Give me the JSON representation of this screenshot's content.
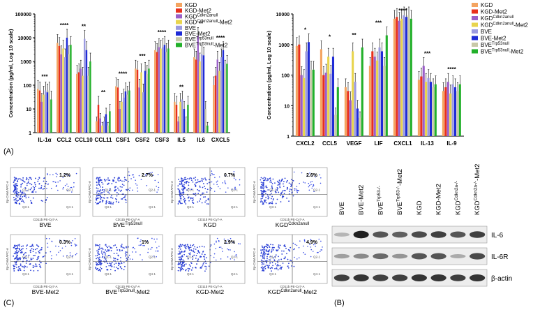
{
  "palette": [
    "#f4a460",
    "#e8301c",
    "#9a5fc8",
    "#e8d44d",
    "#9b9ae0",
    "#1f2bd6",
    "#c8c8a8",
    "#22b02a"
  ],
  "series_names": [
    {
      "base": "KGD",
      "sup": ""
    },
    {
      "base": "KGD-Met2",
      "sup": ""
    },
    {
      "base": "KGD",
      "sup": "Cdkn2anull"
    },
    {
      "base": "KGD",
      "sup": "Cdkn2anull",
      "suffix": "-Met2"
    },
    {
      "base": "BVE",
      "sup": ""
    },
    {
      "base": "BVE-Met2",
      "sup": ""
    },
    {
      "base": "BVE",
      "sup": "Trp53null"
    },
    {
      "base": "BVE",
      "sup": "Trp53null",
      "suffix": "-Met2"
    }
  ],
  "chart_data": [
    {
      "type": "bar",
      "panel": "(A)",
      "title": "",
      "ylabel": "Concentration (pg/ml, Log 10 scale)",
      "yscale": "log",
      "ylim": [
        1,
        100000
      ],
      "yticks": [
        "1",
        "10",
        "100",
        "1000",
        "10000",
        "100000"
      ],
      "categories": [
        "IL-1α",
        "CCL2",
        "CCL10",
        "CCL11",
        "CSF1",
        "CSF2",
        "CSF3",
        "IL5",
        "IL6",
        "CXCL5"
      ],
      "significance": [
        "***",
        "****",
        "**",
        "**",
        "****",
        "***",
        "****",
        "**",
        "**",
        "****"
      ],
      "series": [
        {
          "name": "KGD",
          "values": [
            70,
            6000,
            300,
            3,
            90,
            500,
            3000,
            20,
            1500,
            100
          ]
        },
        {
          "name": "KGD-Met2",
          "values": [
            60,
            4500,
            350,
            15,
            80,
            450,
            2500,
            15,
            1200,
            250
          ]
        },
        {
          "name": "KGD-Cdkn2anull",
          "values": [
            20,
            2000,
            500,
            4,
            10,
            80,
            4000,
            3,
            12000,
            1200
          ]
        },
        {
          "name": "KGD-Cdkn2anull-Met2",
          "values": [
            40,
            3500,
            250,
            2,
            20,
            350,
            3500,
            20,
            1000,
            400
          ]
        },
        {
          "name": "BVE",
          "values": [
            60,
            1500,
            9000,
            3,
            30,
            50,
            4000,
            25,
            2000,
            1500
          ]
        },
        {
          "name": "BVE-Met2",
          "values": [
            50,
            10000,
            3000,
            6,
            55,
            400,
            5000,
            10,
            1800,
            3000
          ]
        },
        {
          "name": "BVE-Trp53null",
          "values": [
            60,
            2000,
            250,
            2,
            40,
            300,
            2500,
            3,
            10,
            500
          ]
        },
        {
          "name": "BVE-Trp53null-Met2",
          "values": [
            25,
            5000,
            1000,
            8,
            60,
            500,
            3500,
            15,
            2,
            800
          ]
        }
      ]
    },
    {
      "type": "bar",
      "panel": "(A)",
      "title": "",
      "ylabel": "Concentration (pg/ml, Log 10 scale)",
      "yscale": "log",
      "ylim": [
        1,
        10000
      ],
      "yticks": [
        "1",
        "10",
        "100",
        "1000",
        "10000"
      ],
      "categories": [
        "CXCL2",
        "CCL5",
        "VEGF",
        "LIF",
        "CXCL1",
        "IL-13",
        "IL-9"
      ],
      "significance": [
        "*",
        "*",
        "**",
        "***",
        "****",
        "***",
        "****"
      ],
      "series": [
        {
          "name": "KGD",
          "values": [
            900,
            700,
            40,
            200,
            7000,
            70,
            30
          ]
        },
        {
          "name": "KGD-Met2",
          "values": [
            1000,
            100,
            30,
            600,
            8000,
            90,
            40
          ]
        },
        {
          "name": "KGD-Cdkn2anull",
          "values": [
            100,
            120,
            15,
            400,
            6000,
            200,
            60
          ]
        },
        {
          "name": "KGD-Cdkn2anull-Met2",
          "values": [
            80,
            400,
            600,
            300,
            7000,
            60,
            25
          ]
        },
        {
          "name": "BVE",
          "values": [
            600,
            110,
            60,
            800,
            9000,
            80,
            50
          ]
        },
        {
          "name": "BVE-Met2",
          "values": [
            1200,
            400,
            8,
            600,
            8000,
            60,
            40
          ]
        },
        {
          "name": "BVE-Trp53null",
          "values": [
            150,
            5,
            4,
            200,
            9000,
            40,
            30
          ]
        },
        {
          "name": "BVE-Trp53null-Met2",
          "values": [
            150,
            40,
            800,
            2000,
            7000,
            50,
            50
          ]
        }
      ]
    }
  ],
  "panel_labels": {
    "a": "(A)",
    "b": "(B)",
    "c": "(C)"
  },
  "flow": {
    "x_axis_label": "CD11b PE-Cy7-A",
    "y_axis_label": "Ep-CAM APC-A",
    "q3": "Q3-1",
    "q4": "Q4-1",
    "q2": "Q2-1",
    "q1": "Q1-1",
    "plots": [
      {
        "label": "BVE",
        "sup": "",
        "suffix": "",
        "pct": "1.2%"
      },
      {
        "label": "BVE",
        "sup": "Trp53null",
        "suffix": "",
        "pct": "2.7%"
      },
      {
        "label": "KGD",
        "sup": "",
        "suffix": "",
        "pct": "0.7%"
      },
      {
        "label": "KGD",
        "sup": "Cdkn2anull",
        "suffix": "",
        "pct": "2.6%"
      },
      {
        "label": "BVE-Met2",
        "sup": "",
        "suffix": "",
        "pct": "0.3%"
      },
      {
        "label": "BVE",
        "sup": "Trp53null",
        "suffix": "-Met2",
        "pct": "1%"
      },
      {
        "label": "KGD-Met2",
        "sup": "",
        "suffix": "",
        "pct": "2.9%"
      },
      {
        "label": "KGD",
        "sup": "Cdkn2anull",
        "suffix": "-Met2",
        "pct": "4.9%"
      }
    ]
  },
  "blot": {
    "lanes": [
      {
        "base": "BVE",
        "sup": "",
        "suffix": ""
      },
      {
        "base": "BVE-Met2",
        "sup": "",
        "suffix": ""
      },
      {
        "base": "BVE",
        "sup": "Trp53-/-",
        "suffix": ""
      },
      {
        "base": "BVE",
        "sup": "Trp53-/-",
        "suffix": "-Met2"
      },
      {
        "base": "KGD",
        "sup": "",
        "suffix": ""
      },
      {
        "base": "KGD-Met2",
        "sup": "",
        "suffix": ""
      },
      {
        "base": "KGD",
        "sup": "Cdkn2a-/-",
        "suffix": ""
      },
      {
        "base": "KGD",
        "sup": "Cdkn2a-/-",
        "suffix": "-Met2"
      }
    ],
    "rows": [
      {
        "label": "IL-6",
        "intensity": [
          0.25,
          0.95,
          0.7,
          0.65,
          0.75,
          0.8,
          0.7,
          0.8
        ]
      },
      {
        "label": "IL-6R",
        "intensity": [
          0.35,
          0.45,
          0.6,
          0.4,
          0.7,
          0.7,
          0.3,
          0.75
        ]
      },
      {
        "label": "β-actin",
        "intensity": [
          0.8,
          0.85,
          0.8,
          0.8,
          0.85,
          0.85,
          0.8,
          0.85
        ]
      }
    ]
  }
}
